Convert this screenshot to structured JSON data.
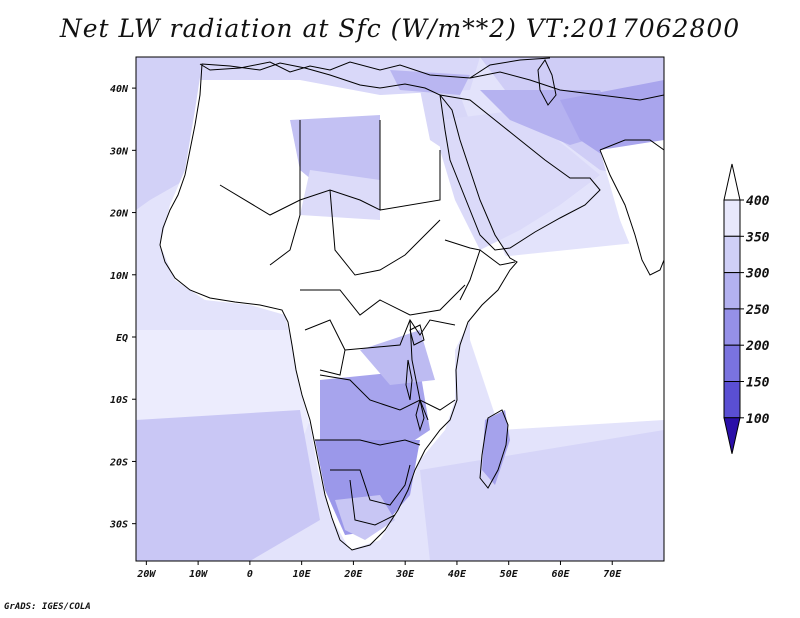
{
  "title": "Net LW radiation at Sfc (W/m**2) VT:2017062800",
  "credit": "GrADS: IGES/COLA",
  "map": {
    "lon_range": [
      -22,
      80
    ],
    "lat_range": [
      -36,
      45
    ],
    "lat_ticks": [
      {
        "value": 40,
        "label": "40N"
      },
      {
        "value": 30,
        "label": "30N"
      },
      {
        "value": 20,
        "label": "20N"
      },
      {
        "value": 10,
        "label": "10N"
      },
      {
        "value": 0,
        "label": "EQ"
      },
      {
        "value": -10,
        "label": "10S"
      },
      {
        "value": -20,
        "label": "20S"
      },
      {
        "value": -30,
        "label": "30S"
      }
    ],
    "lon_ticks": [
      {
        "value": -20,
        "label": "20W"
      },
      {
        "value": -10,
        "label": "10W"
      },
      {
        "value": 0,
        "label": "0"
      },
      {
        "value": 10,
        "label": "10E"
      },
      {
        "value": 20,
        "label": "20E"
      },
      {
        "value": 30,
        "label": "30E"
      },
      {
        "value": 40,
        "label": "40E"
      },
      {
        "value": 50,
        "label": "50E"
      },
      {
        "value": 60,
        "label": "60E"
      },
      {
        "value": 70,
        "label": "70E"
      }
    ]
  },
  "colorbar": {
    "levels": [
      {
        "value": "400",
        "color": "#e8e8fc"
      },
      {
        "value": "350",
        "color": "#cfcff7"
      },
      {
        "value": "300",
        "color": "#b3b1f0"
      },
      {
        "value": "250",
        "color": "#9590e8"
      },
      {
        "value": "200",
        "color": "#7a73df"
      },
      {
        "value": "150",
        "color": "#5a4fd3"
      },
      {
        "value": "100",
        "color": "#3c2bc4"
      }
    ],
    "over_color": "#ffffff",
    "under_color": "#2a0fa8"
  }
}
